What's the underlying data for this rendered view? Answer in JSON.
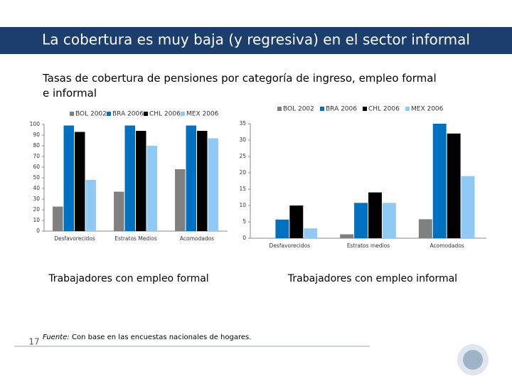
{
  "slide": {
    "title": "La cobertura es muy baja (y regresiva) en el sector informal",
    "subtitle": "Tasas de cobertura de pensiones por categoría de ingreso, empleo formal e informal",
    "footnote_label": "Fuente:",
    "footnote_text": "Con base en las encuestas nacionales de hogares.",
    "page_number": "17"
  },
  "chart_data": [
    {
      "type": "bar",
      "caption": "Trabajadores con empleo formal",
      "categories": [
        "Desfavorecidos",
        "Estratos Medios",
        "Acomodados"
      ],
      "series": [
        {
          "name": "BOL 2002",
          "color": "#808080",
          "values": [
            23,
            37,
            58
          ]
        },
        {
          "name": "BRA 2006",
          "color": "#0070c0",
          "values": [
            99,
            99,
            99
          ]
        },
        {
          "name": "CHL 2006",
          "color": "#000000",
          "values": [
            93,
            94,
            94
          ]
        },
        {
          "name": "MEX 2006",
          "color": "#8ecaf5",
          "values": [
            48,
            80,
            87
          ]
        }
      ],
      "ylim": [
        0,
        100
      ],
      "yticks": [
        0,
        10,
        20,
        30,
        40,
        50,
        60,
        70,
        80,
        90,
        100
      ],
      "legend": "top"
    },
    {
      "type": "bar",
      "caption": "Trabajadores con empleo informal",
      "categories": [
        "Desfavorecidos",
        "Estratos medios",
        "Acomodados"
      ],
      "series": [
        {
          "name": "BOL 2002",
          "color": "#808080",
          "values": [
            0,
            1.2,
            5.8
          ]
        },
        {
          "name": "BRA 2006",
          "color": "#0070c0",
          "values": [
            5.7,
            10.8,
            35
          ]
        },
        {
          "name": "CHL 2006",
          "color": "#000000",
          "values": [
            10,
            14,
            32
          ]
        },
        {
          "name": "MEX 2006",
          "color": "#8ecaf5",
          "values": [
            3,
            10.8,
            19
          ]
        }
      ],
      "ylim": [
        0,
        35
      ],
      "yticks": [
        0,
        5,
        10,
        15,
        20,
        25,
        30,
        35
      ],
      "legend": "top"
    }
  ]
}
